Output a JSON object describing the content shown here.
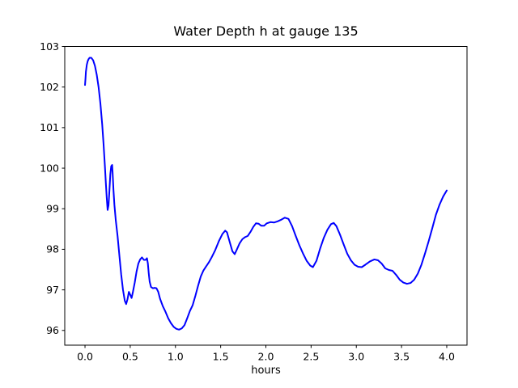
{
  "chart_data": {
    "type": "line",
    "title": "Water Depth h at gauge 135",
    "xlabel": "hours",
    "ylabel": "",
    "grid": false,
    "legend": "none",
    "xlim": [
      -0.224,
      4.224
    ],
    "ylim": [
      95.637,
      103.0
    ],
    "xticks": [
      0.0,
      0.5,
      1.0,
      1.5,
      2.0,
      2.5,
      3.0,
      3.5,
      4.0
    ],
    "xtick_labels": [
      "0.0",
      "0.5",
      "1.0",
      "1.5",
      "2.0",
      "2.5",
      "3.0",
      "3.5",
      "4.0"
    ],
    "yticks": [
      96,
      97,
      98,
      99,
      100,
      101,
      102,
      103
    ],
    "ytick_labels": [
      "96",
      "97",
      "98",
      "99",
      "100",
      "101",
      "102",
      "103"
    ],
    "line_color": "#0000ff",
    "axis_color": "#000000",
    "background_color": "#ffffff",
    "points": [
      [
        0.0,
        102.05
      ],
      [
        0.005,
        102.2
      ],
      [
        0.01,
        102.38
      ],
      [
        0.02,
        102.55
      ],
      [
        0.03,
        102.64
      ],
      [
        0.04,
        102.69
      ],
      [
        0.05,
        102.72
      ],
      [
        0.07,
        102.72
      ],
      [
        0.09,
        102.66
      ],
      [
        0.11,
        102.52
      ],
      [
        0.13,
        102.3
      ],
      [
        0.15,
        102.0
      ],
      [
        0.17,
        101.6
      ],
      [
        0.19,
        101.08
      ],
      [
        0.205,
        100.6
      ],
      [
        0.22,
        100.05
      ],
      [
        0.23,
        99.65
      ],
      [
        0.24,
        99.28
      ],
      [
        0.25,
        98.97
      ],
      [
        0.26,
        99.08
      ],
      [
        0.27,
        99.45
      ],
      [
        0.28,
        99.85
      ],
      [
        0.29,
        100.05
      ],
      [
        0.3,
        100.08
      ],
      [
        0.305,
        99.9
      ],
      [
        0.315,
        99.45
      ],
      [
        0.325,
        99.1
      ],
      [
        0.34,
        98.72
      ],
      [
        0.36,
        98.33
      ],
      [
        0.38,
        97.85
      ],
      [
        0.4,
        97.38
      ],
      [
        0.42,
        97.0
      ],
      [
        0.44,
        96.73
      ],
      [
        0.455,
        96.65
      ],
      [
        0.47,
        96.77
      ],
      [
        0.485,
        96.95
      ],
      [
        0.5,
        96.88
      ],
      [
        0.515,
        96.8
      ],
      [
        0.53,
        96.95
      ],
      [
        0.55,
        97.18
      ],
      [
        0.57,
        97.45
      ],
      [
        0.59,
        97.65
      ],
      [
        0.61,
        97.75
      ],
      [
        0.63,
        97.8
      ],
      [
        0.65,
        97.74
      ],
      [
        0.67,
        97.74
      ],
      [
        0.685,
        97.78
      ],
      [
        0.695,
        97.65
      ],
      [
        0.705,
        97.4
      ],
      [
        0.715,
        97.2
      ],
      [
        0.73,
        97.07
      ],
      [
        0.75,
        97.04
      ],
      [
        0.77,
        97.05
      ],
      [
        0.79,
        97.04
      ],
      [
        0.81,
        96.95
      ],
      [
        0.83,
        96.78
      ],
      [
        0.86,
        96.6
      ],
      [
        0.89,
        96.46
      ],
      [
        0.92,
        96.3
      ],
      [
        0.95,
        96.18
      ],
      [
        0.98,
        96.09
      ],
      [
        1.01,
        96.04
      ],
      [
        1.04,
        96.02
      ],
      [
        1.07,
        96.05
      ],
      [
        1.1,
        96.13
      ],
      [
        1.13,
        96.3
      ],
      [
        1.16,
        96.48
      ],
      [
        1.19,
        96.62
      ],
      [
        1.22,
        96.85
      ],
      [
        1.25,
        97.1
      ],
      [
        1.28,
        97.33
      ],
      [
        1.31,
        97.48
      ],
      [
        1.34,
        97.58
      ],
      [
        1.37,
        97.68
      ],
      [
        1.4,
        97.8
      ],
      [
        1.44,
        97.98
      ],
      [
        1.48,
        98.2
      ],
      [
        1.52,
        98.38
      ],
      [
        1.55,
        98.46
      ],
      [
        1.57,
        98.42
      ],
      [
        1.6,
        98.18
      ],
      [
        1.63,
        97.95
      ],
      [
        1.655,
        97.88
      ],
      [
        1.68,
        98.0
      ],
      [
        1.71,
        98.15
      ],
      [
        1.74,
        98.25
      ],
      [
        1.77,
        98.3
      ],
      [
        1.8,
        98.33
      ],
      [
        1.83,
        98.43
      ],
      [
        1.86,
        98.55
      ],
      [
        1.89,
        98.64
      ],
      [
        1.92,
        98.63
      ],
      [
        1.95,
        98.58
      ],
      [
        1.98,
        98.58
      ],
      [
        2.01,
        98.64
      ],
      [
        2.05,
        98.67
      ],
      [
        2.09,
        98.66
      ],
      [
        2.13,
        98.69
      ],
      [
        2.17,
        98.73
      ],
      [
        2.21,
        98.78
      ],
      [
        2.25,
        98.75
      ],
      [
        2.29,
        98.57
      ],
      [
        2.33,
        98.33
      ],
      [
        2.37,
        98.1
      ],
      [
        2.41,
        97.9
      ],
      [
        2.45,
        97.72
      ],
      [
        2.49,
        97.6
      ],
      [
        2.52,
        97.56
      ],
      [
        2.56,
        97.72
      ],
      [
        2.6,
        98.02
      ],
      [
        2.64,
        98.28
      ],
      [
        2.68,
        98.48
      ],
      [
        2.72,
        98.62
      ],
      [
        2.75,
        98.65
      ],
      [
        2.78,
        98.57
      ],
      [
        2.82,
        98.36
      ],
      [
        2.86,
        98.12
      ],
      [
        2.9,
        97.89
      ],
      [
        2.94,
        97.73
      ],
      [
        2.98,
        97.62
      ],
      [
        3.02,
        97.57
      ],
      [
        3.06,
        97.56
      ],
      [
        3.1,
        97.62
      ],
      [
        3.15,
        97.7
      ],
      [
        3.2,
        97.75
      ],
      [
        3.24,
        97.73
      ],
      [
        3.28,
        97.65
      ],
      [
        3.32,
        97.53
      ],
      [
        3.36,
        97.49
      ],
      [
        3.4,
        97.47
      ],
      [
        3.44,
        97.37
      ],
      [
        3.48,
        97.25
      ],
      [
        3.52,
        97.18
      ],
      [
        3.56,
        97.15
      ],
      [
        3.6,
        97.17
      ],
      [
        3.64,
        97.25
      ],
      [
        3.68,
        97.4
      ],
      [
        3.72,
        97.62
      ],
      [
        3.76,
        97.9
      ],
      [
        3.8,
        98.2
      ],
      [
        3.84,
        98.52
      ],
      [
        3.88,
        98.85
      ],
      [
        3.92,
        99.1
      ],
      [
        3.96,
        99.3
      ],
      [
        4.0,
        99.45
      ]
    ]
  }
}
